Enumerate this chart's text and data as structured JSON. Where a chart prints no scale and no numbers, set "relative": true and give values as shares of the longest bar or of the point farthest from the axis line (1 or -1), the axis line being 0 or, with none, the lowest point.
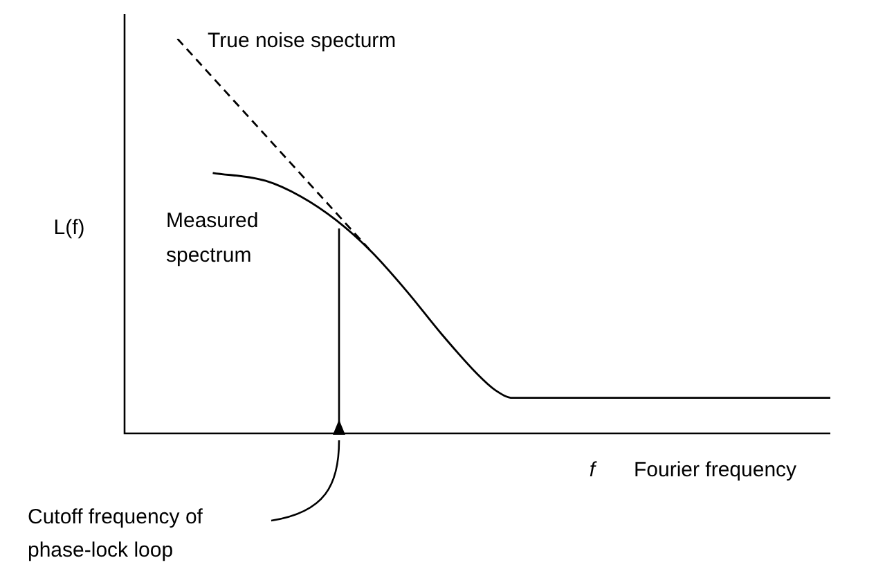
{
  "chart_data": {
    "type": "line",
    "relative": true,
    "ylabel": "L(f)",
    "xlabel": "Fourier frequency",
    "annotations": [
      "f",
      "Cutoff frequency of phase-lock loop"
    ],
    "categories": [
      null,
      null,
      null,
      null,
      null,
      null,
      null,
      null,
      null,
      null,
      null,
      null,
      null,
      null,
      null,
      null,
      null,
      null,
      null,
      null,
      null,
      null,
      null,
      null,
      null,
      null,
      null,
      null,
      null,
      null,
      null,
      null,
      null,
      null,
      null,
      null,
      null,
      null,
      null,
      null,
      null
    ],
    "series": [
      {
        "name": "Measured spectrum",
        "color": "#000000",
        "line_style": "solid",
        "values": [
          null,
          null,
          null,
          null,
          null,
          0.66,
          null,
          null,
          0.64,
          null,
          0.6,
          null,
          0.54,
          null,
          0.46,
          null,
          0.36,
          null,
          0.25,
          null,
          0.15,
          0.11,
          0.09,
          null,
          0.09,
          null,
          null,
          null,
          null,
          null,
          null,
          null,
          null,
          null,
          null,
          null,
          null,
          null,
          null,
          null,
          0.09
        ]
      },
      {
        "name": "True noise specturm",
        "color": "#000000",
        "line_style": "dashed",
        "values": [
          null,
          null,
          null,
          1,
          null,
          null,
          null,
          null,
          null,
          null,
          null,
          null,
          null,
          null,
          0.46,
          null,
          null,
          null,
          null,
          null,
          null,
          null,
          null,
          null,
          null,
          null,
          null,
          null,
          null,
          null,
          null,
          null,
          null,
          null,
          null,
          null,
          null,
          null,
          null,
          null,
          null
        ]
      }
    ],
    "legend": false,
    "marker": "none"
  }
}
